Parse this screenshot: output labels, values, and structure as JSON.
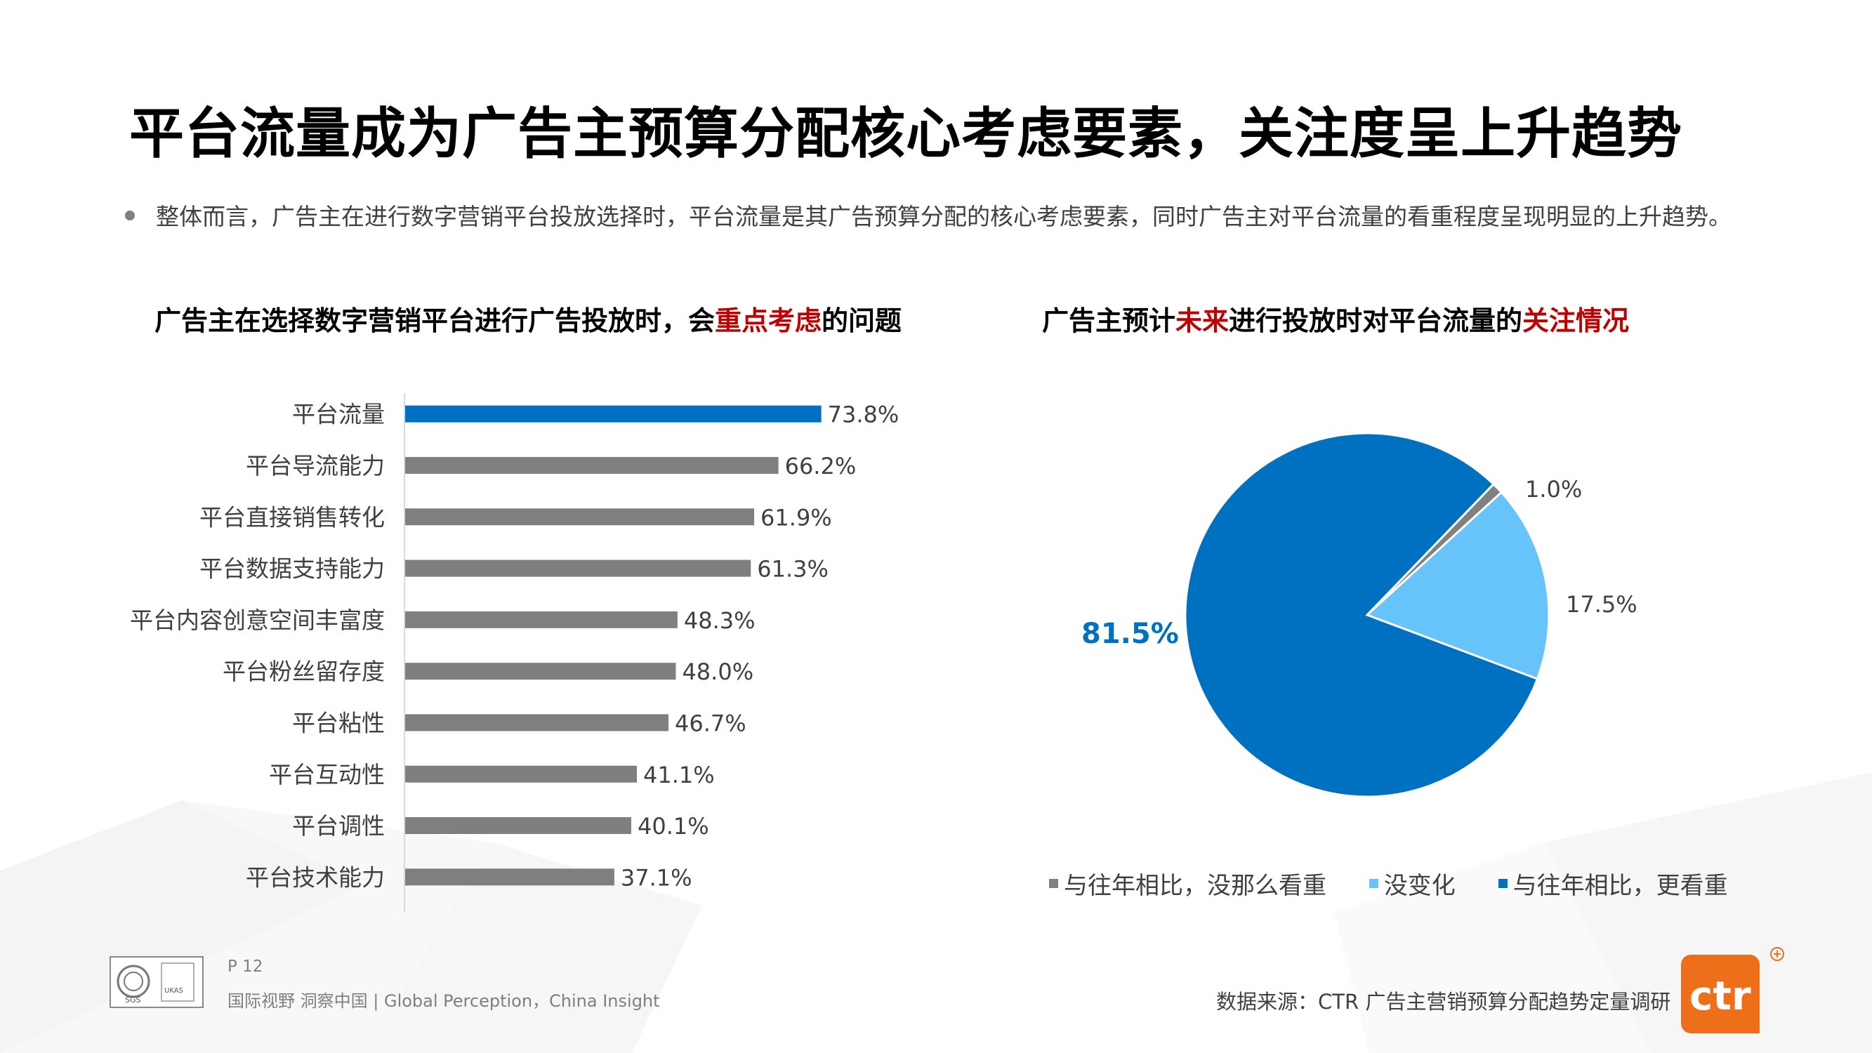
{
  "header": {
    "title": "平台流量成为广告主预算分配核心考虑要素，关注度呈上升趋势",
    "bullet": "整体而言，广告主在进行数字营销平台投放选择时，平台流量是其广告预算分配的核心考虑要素，同时广告主对平台流量的看重程度呈现明显的上升趋势。"
  },
  "left_subtitle": {
    "pre": "广告主在选择数字营销平台进行广告投放时，会",
    "highlight": "重点考虑",
    "post": "的问题"
  },
  "right_subtitle": {
    "pre": "广告主预计",
    "highlight1": "未来",
    "mid": "进行投放时对平台流量的",
    "highlight2": "关注情况"
  },
  "colors": {
    "accent_blue": "#0070c0",
    "gray_bar": "#7f7f7f",
    "light_blue": "#66c4fb",
    "highlight_red": "#c00000",
    "logo_orange": "#ee6f1a"
  },
  "chart_data": [
    {
      "type": "bar",
      "orientation": "horizontal",
      "categories": [
        "平台流量",
        "平台导流能力",
        "平台直接销售转化",
        "平台数据支持能力",
        "平台内容创意空间丰富度",
        "平台粉丝留存度",
        "平台粘性",
        "平台互动性",
        "平台调性",
        "平台技术能力"
      ],
      "values": [
        73.8,
        66.2,
        61.9,
        61.3,
        48.3,
        48.0,
        46.7,
        41.1,
        40.1,
        37.1
      ],
      "labels": [
        "73.8%",
        "66.2%",
        "61.9%",
        "61.3%",
        "48.3%",
        "48.0%",
        "46.7%",
        "41.1%",
        "40.1%",
        "37.1%"
      ],
      "unit": "%",
      "colors": [
        "#0070c0",
        "#7f7f7f",
        "#7f7f7f",
        "#7f7f7f",
        "#7f7f7f",
        "#7f7f7f",
        "#7f7f7f",
        "#7f7f7f",
        "#7f7f7f",
        "#7f7f7f"
      ]
    },
    {
      "type": "pie",
      "slices": [
        {
          "name": "与往年相比，没那么看重",
          "value": 1.0,
          "label": "1.0%",
          "color": "#808080"
        },
        {
          "name": "没变化",
          "value": 17.5,
          "label": "17.5%",
          "color": "#66c4fb"
        },
        {
          "name": "与往年相比，更看重",
          "value": 81.5,
          "label": "81.5%",
          "color": "#0070c0"
        }
      ],
      "legend": [
        "与往年相比，没那么看重",
        "没变化",
        "与往年相比，更看重"
      ],
      "legend_position": "bottom"
    }
  ],
  "footer": {
    "page": "P 12",
    "slogan": "国际视野  洞察中国 |  Global Perception，China Insight",
    "source": "数据来源：CTR 广告主营销预算分配趋势定量调研",
    "logo_text": "ctr",
    "cert_text": "SGS",
    "cert_text2": "UKAS"
  }
}
